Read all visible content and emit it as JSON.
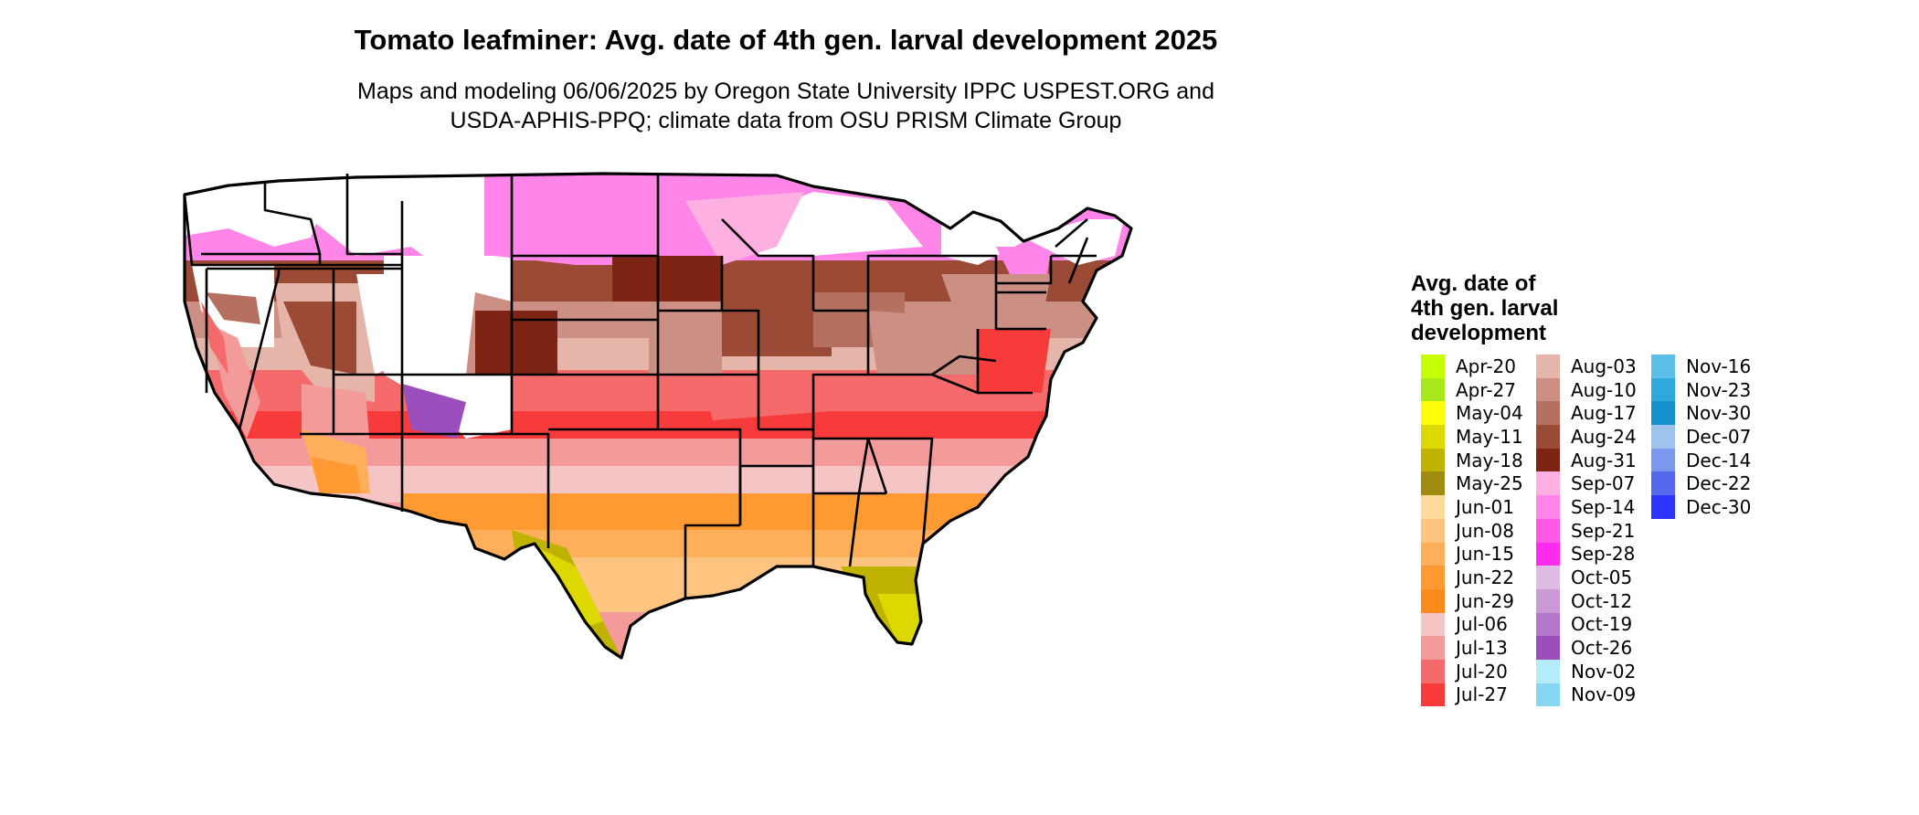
{
  "title": "Tomato leafminer: Avg. date of 4th gen. larval development 2025",
  "subtitle": {
    "line1": "Maps and modeling 06/06/2025 by Oregon State University IPPC USPEST.ORG and",
    "line2": "USDA-APHIS-PPQ; climate data from OSU PRISM Climate Group"
  },
  "legend": {
    "title_lines": [
      "Avg. date of",
      "4th gen. larval",
      "development"
    ],
    "columns": [
      [
        {
          "label": "Apr-20",
          "color": "#c6ff00"
        },
        {
          "label": "Apr-27",
          "color": "#a6e81a"
        },
        {
          "label": "May-04",
          "color": "#ffff00"
        },
        {
          "label": "May-11",
          "color": "#dcd800"
        },
        {
          "label": "May-18",
          "color": "#bfb300"
        },
        {
          "label": "May-25",
          "color": "#a08c10"
        },
        {
          "label": "Jun-01",
          "color": "#ffd997"
        },
        {
          "label": "Jun-08",
          "color": "#ffc47f"
        },
        {
          "label": "Jun-15",
          "color": "#ffaf5a"
        },
        {
          "label": "Jun-22",
          "color": "#ff9a33"
        },
        {
          "label": "Jun-29",
          "color": "#ff8a1c"
        },
        {
          "label": "Jul-06",
          "color": "#f5c4c4"
        },
        {
          "label": "Jul-13",
          "color": "#f39a9a"
        },
        {
          "label": "Jul-20",
          "color": "#f56a6a"
        },
        {
          "label": "Jul-27",
          "color": "#f73a3a"
        }
      ],
      [
        {
          "label": "Aug-03",
          "color": "#e5b5aa"
        },
        {
          "label": "Aug-10",
          "color": "#cc8f83"
        },
        {
          "label": "Aug-17",
          "color": "#b5705f"
        },
        {
          "label": "Aug-24",
          "color": "#9a4a35"
        },
        {
          "label": "Aug-31",
          "color": "#7d2414"
        },
        {
          "label": "Sep-07",
          "color": "#ffb0e3"
        },
        {
          "label": "Sep-14",
          "color": "#ff85e8"
        },
        {
          "label": "Sep-21",
          "color": "#ff5ae6"
        },
        {
          "label": "Sep-28",
          "color": "#ff2cf0"
        },
        {
          "label": "Oct-05",
          "color": "#ddbbe3"
        },
        {
          "label": "Oct-12",
          "color": "#c99ad6"
        },
        {
          "label": "Oct-19",
          "color": "#b676cc"
        },
        {
          "label": "Oct-26",
          "color": "#9c4ebd"
        },
        {
          "label": "Nov-02",
          "color": "#b5ecfb"
        },
        {
          "label": "Nov-09",
          "color": "#86d6f4"
        }
      ],
      [
        {
          "label": "Nov-16",
          "color": "#5bbfe9"
        },
        {
          "label": "Nov-23",
          "color": "#2fa8dc"
        },
        {
          "label": "Nov-30",
          "color": "#1693cf"
        },
        {
          "label": "Dec-07",
          "color": "#9ec4ee"
        },
        {
          "label": "Dec-14",
          "color": "#7d97ee"
        },
        {
          "label": "Dec-22",
          "color": "#5669ee"
        },
        {
          "label": "Dec-30",
          "color": "#2b35ff"
        }
      ]
    ]
  }
}
